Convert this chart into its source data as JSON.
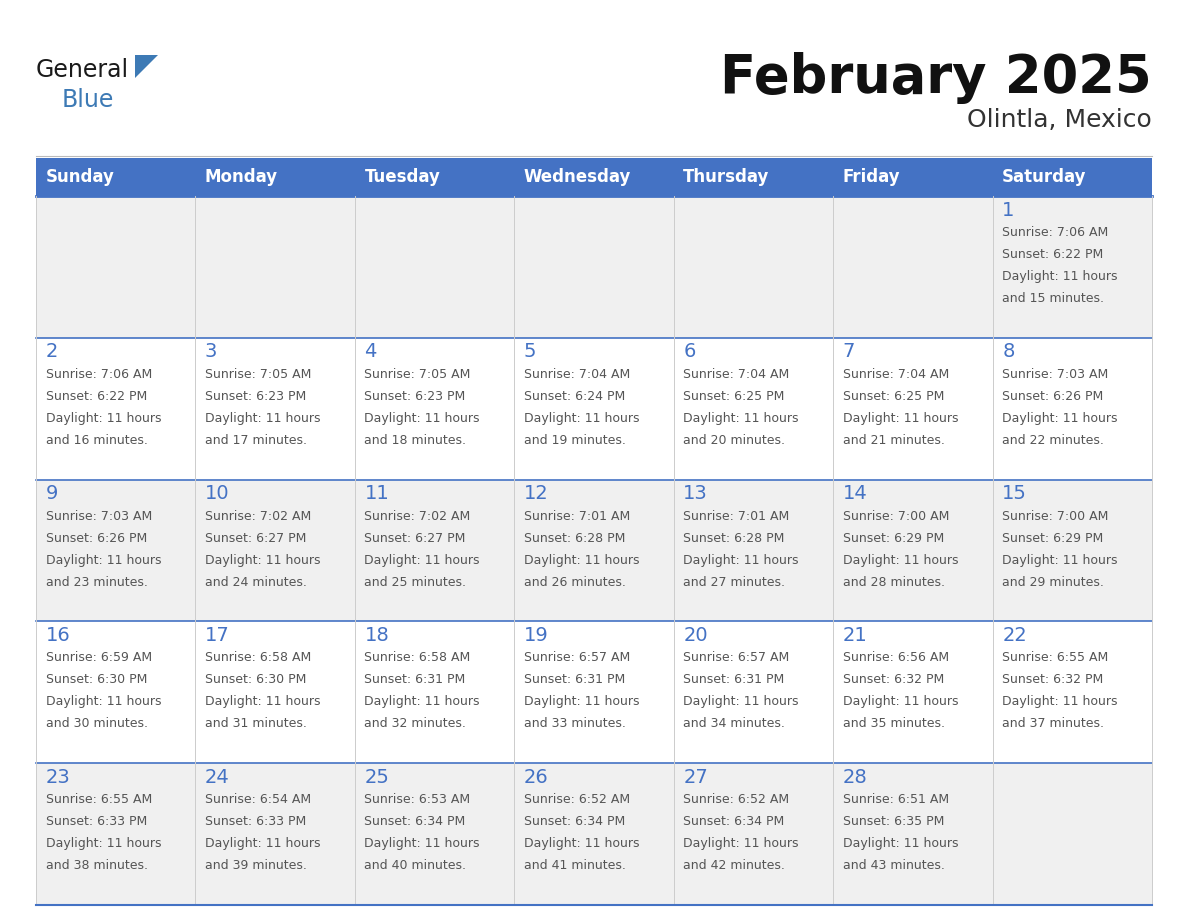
{
  "title": "February 2025",
  "subtitle": "Olintla, Mexico",
  "days_of_week": [
    "Sunday",
    "Monday",
    "Tuesday",
    "Wednesday",
    "Thursday",
    "Friday",
    "Saturday"
  ],
  "header_bg": "#4472C4",
  "header_text": "#FFFFFF",
  "cell_bg_odd": "#F0F0F0",
  "cell_bg_even": "#FFFFFF",
  "cell_border_color": "#4472C4",
  "grid_line_color": "#AAAAAA",
  "day_number_color": "#4472C4",
  "text_color": "#555555",
  "title_color": "#111111",
  "subtitle_color": "#333333",
  "logo_general_color": "#1a1a1a",
  "logo_blue_color": "#3d7ab5",
  "fig_width": 11.88,
  "fig_height": 9.18,
  "dpi": 100,
  "calendar": [
    [
      null,
      null,
      null,
      null,
      null,
      null,
      {
        "day": 1,
        "sunrise": "7:06 AM",
        "sunset": "6:22 PM",
        "daylight": "11 hours and 15 minutes."
      }
    ],
    [
      {
        "day": 2,
        "sunrise": "7:06 AM",
        "sunset": "6:22 PM",
        "daylight": "11 hours and 16 minutes."
      },
      {
        "day": 3,
        "sunrise": "7:05 AM",
        "sunset": "6:23 PM",
        "daylight": "11 hours and 17 minutes."
      },
      {
        "day": 4,
        "sunrise": "7:05 AM",
        "sunset": "6:23 PM",
        "daylight": "11 hours and 18 minutes."
      },
      {
        "day": 5,
        "sunrise": "7:04 AM",
        "sunset": "6:24 PM",
        "daylight": "11 hours and 19 minutes."
      },
      {
        "day": 6,
        "sunrise": "7:04 AM",
        "sunset": "6:25 PM",
        "daylight": "11 hours and 20 minutes."
      },
      {
        "day": 7,
        "sunrise": "7:04 AM",
        "sunset": "6:25 PM",
        "daylight": "11 hours and 21 minutes."
      },
      {
        "day": 8,
        "sunrise": "7:03 AM",
        "sunset": "6:26 PM",
        "daylight": "11 hours and 22 minutes."
      }
    ],
    [
      {
        "day": 9,
        "sunrise": "7:03 AM",
        "sunset": "6:26 PM",
        "daylight": "11 hours and 23 minutes."
      },
      {
        "day": 10,
        "sunrise": "7:02 AM",
        "sunset": "6:27 PM",
        "daylight": "11 hours and 24 minutes."
      },
      {
        "day": 11,
        "sunrise": "7:02 AM",
        "sunset": "6:27 PM",
        "daylight": "11 hours and 25 minutes."
      },
      {
        "day": 12,
        "sunrise": "7:01 AM",
        "sunset": "6:28 PM",
        "daylight": "11 hours and 26 minutes."
      },
      {
        "day": 13,
        "sunrise": "7:01 AM",
        "sunset": "6:28 PM",
        "daylight": "11 hours and 27 minutes."
      },
      {
        "day": 14,
        "sunrise": "7:00 AM",
        "sunset": "6:29 PM",
        "daylight": "11 hours and 28 minutes."
      },
      {
        "day": 15,
        "sunrise": "7:00 AM",
        "sunset": "6:29 PM",
        "daylight": "11 hours and 29 minutes."
      }
    ],
    [
      {
        "day": 16,
        "sunrise": "6:59 AM",
        "sunset": "6:30 PM",
        "daylight": "11 hours and 30 minutes."
      },
      {
        "day": 17,
        "sunrise": "6:58 AM",
        "sunset": "6:30 PM",
        "daylight": "11 hours and 31 minutes."
      },
      {
        "day": 18,
        "sunrise": "6:58 AM",
        "sunset": "6:31 PM",
        "daylight": "11 hours and 32 minutes."
      },
      {
        "day": 19,
        "sunrise": "6:57 AM",
        "sunset": "6:31 PM",
        "daylight": "11 hours and 33 minutes."
      },
      {
        "day": 20,
        "sunrise": "6:57 AM",
        "sunset": "6:31 PM",
        "daylight": "11 hours and 34 minutes."
      },
      {
        "day": 21,
        "sunrise": "6:56 AM",
        "sunset": "6:32 PM",
        "daylight": "11 hours and 35 minutes."
      },
      {
        "day": 22,
        "sunrise": "6:55 AM",
        "sunset": "6:32 PM",
        "daylight": "11 hours and 37 minutes."
      }
    ],
    [
      {
        "day": 23,
        "sunrise": "6:55 AM",
        "sunset": "6:33 PM",
        "daylight": "11 hours and 38 minutes."
      },
      {
        "day": 24,
        "sunrise": "6:54 AM",
        "sunset": "6:33 PM",
        "daylight": "11 hours and 39 minutes."
      },
      {
        "day": 25,
        "sunrise": "6:53 AM",
        "sunset": "6:34 PM",
        "daylight": "11 hours and 40 minutes."
      },
      {
        "day": 26,
        "sunrise": "6:52 AM",
        "sunset": "6:34 PM",
        "daylight": "11 hours and 41 minutes."
      },
      {
        "day": 27,
        "sunrise": "6:52 AM",
        "sunset": "6:34 PM",
        "daylight": "11 hours and 42 minutes."
      },
      {
        "day": 28,
        "sunrise": "6:51 AM",
        "sunset": "6:35 PM",
        "daylight": "11 hours and 43 minutes."
      },
      null
    ]
  ]
}
